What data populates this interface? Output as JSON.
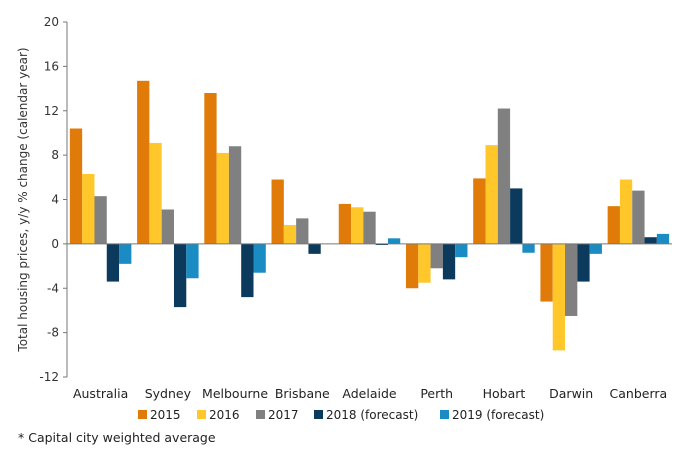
{
  "chart_data": {
    "type": "bar",
    "title": "",
    "ylabel": "Total housing prices, y/y % change (calendar year)",
    "xlabel": "",
    "ylim": [
      -12,
      20
    ],
    "yticks": [
      -12,
      -8,
      -4,
      0,
      4,
      8,
      12,
      16,
      20
    ],
    "grid": false,
    "legend": "bottom",
    "categories": [
      "Australia",
      "Sydney",
      "Melbourne",
      "Brisbane",
      "Adelaide",
      "Perth",
      "Hobart",
      "Darwin",
      "Canberra"
    ],
    "series": [
      {
        "name": "2015",
        "color": "#E07B0A",
        "values": [
          10.4,
          14.7,
          13.6,
          5.8,
          3.6,
          -4.0,
          5.9,
          -5.2,
          3.4
        ]
      },
      {
        "name": "2016",
        "color": "#FFC729",
        "values": [
          6.3,
          9.1,
          8.2,
          1.7,
          3.3,
          -3.5,
          8.9,
          -9.6,
          5.8
        ]
      },
      {
        "name": "2017",
        "color": "#808080",
        "values": [
          4.3,
          3.1,
          8.8,
          2.3,
          2.9,
          -2.2,
          12.2,
          -6.5,
          4.8
        ]
      },
      {
        "name": "2018 (forecast)",
        "color": "#0B3A5C",
        "values": [
          -3.4,
          -5.7,
          -4.8,
          -0.9,
          -0.1,
          -3.2,
          5.0,
          -3.4,
          0.6
        ]
      },
      {
        "name": "2019 (forecast)",
        "color": "#1A8BC3",
        "values": [
          -1.8,
          -3.1,
          -2.6,
          0.0,
          0.5,
          -1.2,
          -0.8,
          -0.9,
          0.9
        ]
      }
    ]
  },
  "footnote": "* Capital city weighted average"
}
